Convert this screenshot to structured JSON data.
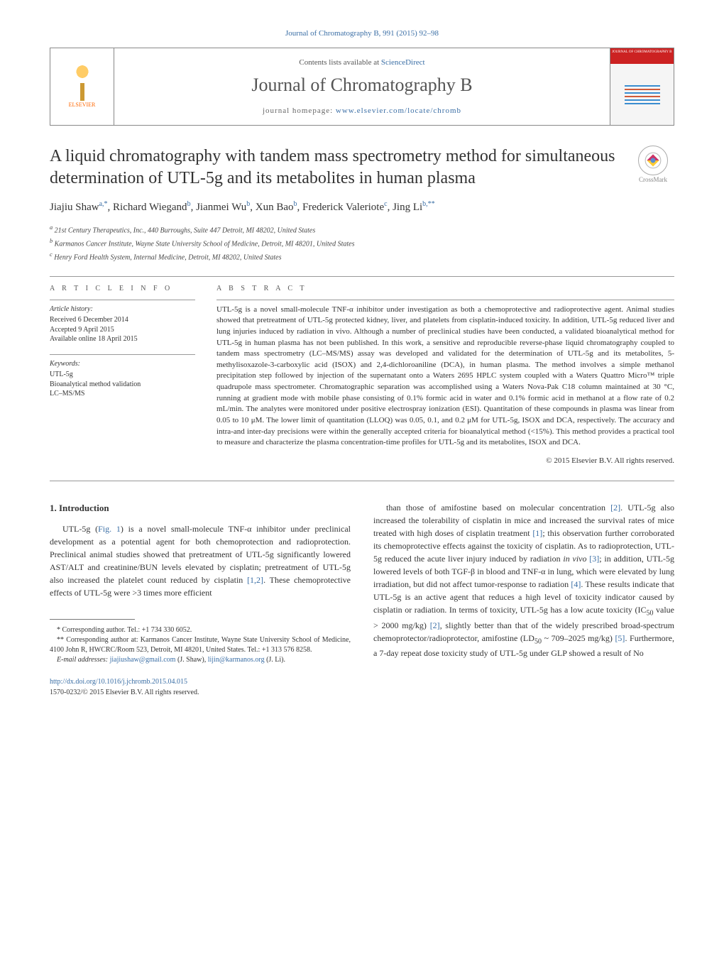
{
  "journal_ref": "Journal of Chromatography B, 991 (2015) 92–98",
  "masthead": {
    "publisher": "ELSEVIER",
    "contents_prefix": "Contents lists available at ",
    "contents_link": "ScienceDirect",
    "journal_name": "Journal of Chromatography B",
    "homepage_prefix": "journal homepage: ",
    "homepage_url": "www.elsevier.com/locate/chromb",
    "cover_header": "JOURNAL OF CHROMATOGRAPHY B"
  },
  "crossmark_label": "CrossMark",
  "title": "A liquid chromatography with tandem mass spectrometry method for simultaneous determination of UTL-5g and its metabolites in human plasma",
  "authors_html": "Jiajiu Shaw<sup>a,*</sup>, Richard Wiegand<sup>b</sup>, Jianmei Wu<sup>b</sup>, Xun Bao<sup>b</sup>, Frederick Valeriote<sup>c</sup>, Jing Li<sup>b,**</sup>",
  "affiliations": {
    "a": "21st Century Therapeutics, Inc., 440 Burroughs, Suite 447 Detroit, MI 48202, United States",
    "b": "Karmanos Cancer Institute, Wayne State University School of Medicine, Detroit, MI 48201, United States",
    "c": "Henry Ford Health System, Internal Medicine, Detroit, MI 48202, United States"
  },
  "article_info": {
    "heading": "a r t i c l e   i n f o",
    "history_head": "Article history:",
    "received": "Received 6 December 2014",
    "accepted": "Accepted 9 April 2015",
    "online": "Available online 18 April 2015",
    "keywords_head": "Keywords:",
    "kw1": "UTL-5g",
    "kw2": "Bioanalytical method validation",
    "kw3": "LC–MS/MS"
  },
  "abstract": {
    "heading": "a b s t r a c t",
    "text": "UTL-5g is a novel small-molecule TNF-α inhibitor under investigation as both a chemoprotective and radioprotective agent. Animal studies showed that pretreatment of UTL-5g protected kidney, liver, and platelets from cisplatin-induced toxicity. In addition, UTL-5g reduced liver and lung injuries induced by radiation in vivo. Although a number of preclinical studies have been conducted, a validated bioanalytical method for UTL-5g in human plasma has not been published. In this work, a sensitive and reproducible reverse-phase liquid chromatography coupled to tandem mass spectrometry (LC–MS/MS) assay was developed and validated for the determination of UTL-5g and its metabolites, 5-methylisoxazole-3-carboxylic acid (ISOX) and 2,4-dichloroaniline (DCA), in human plasma. The method involves a simple methanol precipitation step followed by injection of the supernatant onto a Waters 2695 HPLC system coupled with a Waters Quattro Micro™ triple quadrupole mass spectrometer. Chromatographic separation was accomplished using a Waters Nova-Pak C18 column maintained at 30 °C, running at gradient mode with mobile phase consisting of 0.1% formic acid in water and 0.1% formic acid in methanol at a flow rate of 0.2 mL/min. The analytes were monitored under positive electrospray ionization (ESI). Quantitation of these compounds in plasma was linear from 0.05 to 10 μM. The lower limit of quantitation (LLOQ) was 0.05, 0.1, and 0.2 μM for UTL-5g, ISOX and DCA, respectively. The accuracy and intra-and inter-day precisions were within the generally accepted criteria for bioanalytical method (<15%). This method provides a practical tool to measure and characterize the plasma concentration-time profiles for UTL-5g and its metabolites, ISOX and DCA.",
    "copyright": "© 2015 Elsevier B.V. All rights reserved."
  },
  "intro": {
    "heading": "1. Introduction",
    "col1_html": "UTL-5g (<span class=\"ref-link\">Fig. 1</span>) is a novel small-molecule TNF-α inhibitor under preclinical development as a potential agent for both chemoprotection and radioprotection. Preclinical animal studies showed that pretreatment of UTL-5g significantly lowered AST/ALT and creatinine/BUN levels elevated by cisplatin; pretreatment of UTL-5g also increased the platelet count reduced by cisplatin <span class=\"ref-link\">[1,2]</span>. These chemoprotective effects of UTL-5g were &gt;3 times more efficient",
    "col2_html": "than those of amifostine based on molecular concentration <span class=\"ref-link\">[2]</span>. UTL-5g also increased the tolerability of cisplatin in mice and increased the survival rates of mice treated with high doses of cisplatin treatment <span class=\"ref-link\">[1]</span>; this observation further corroborated its chemoprotective effects against the toxicity of cisplatin. As to radioprotection, UTL-5g reduced the acute liver injury induced by radiation <i>in vivo</i> <span class=\"ref-link\">[3]</span>; in addition, UTL-5g lowered levels of both TGF-β in blood and TNF-α in lung, which were elevated by lung irradiation, but did not affect tumor-response to radiation <span class=\"ref-link\">[4]</span>. These results indicate that UTL-5g is an active agent that reduces a high level of toxicity indicator caused by cisplatin or radiation. In terms of toxicity, UTL-5g has a low acute toxicity (IC<sub>50</sub> value &gt; 2000 mg/kg) <span class=\"ref-link\">[2]</span>, slightly better than that of the widely prescribed broad-spectrum chemoprotector/radioprotector, amifostine (LD<sub>50</sub> ~ 709–2025 mg/kg) <span class=\"ref-link\">[5]</span>. Furthermore, a 7-day repeat dose toxicity study of UTL-5g under GLP showed a result of No"
  },
  "footnotes": {
    "f1": "* Corresponding author. Tel.: +1 734 330 6052.",
    "f2": "** Corresponding author at: Karmanos Cancer Institute, Wayne State University School of Medicine, 4100 John R, HWCRC/Room 523, Detroit, MI 48201, United States. Tel.: +1 313 576 8258.",
    "email_label": "E-mail addresses: ",
    "email1": "jiajiushaw@gmail.com",
    "email1_paren": " (J. Shaw), ",
    "email2": "lijin@karmanos.org",
    "email2_paren": " (J. Li)."
  },
  "doi": {
    "url": "http://dx.doi.org/10.1016/j.jchromb.2015.04.015",
    "issn_line": "1570-0232/© 2015 Elsevier B.V. All rights reserved."
  },
  "colors": {
    "link": "#3a6ea5",
    "text": "#333333",
    "elsevier_orange": "#ff6600",
    "cover_red": "#cc2222"
  }
}
